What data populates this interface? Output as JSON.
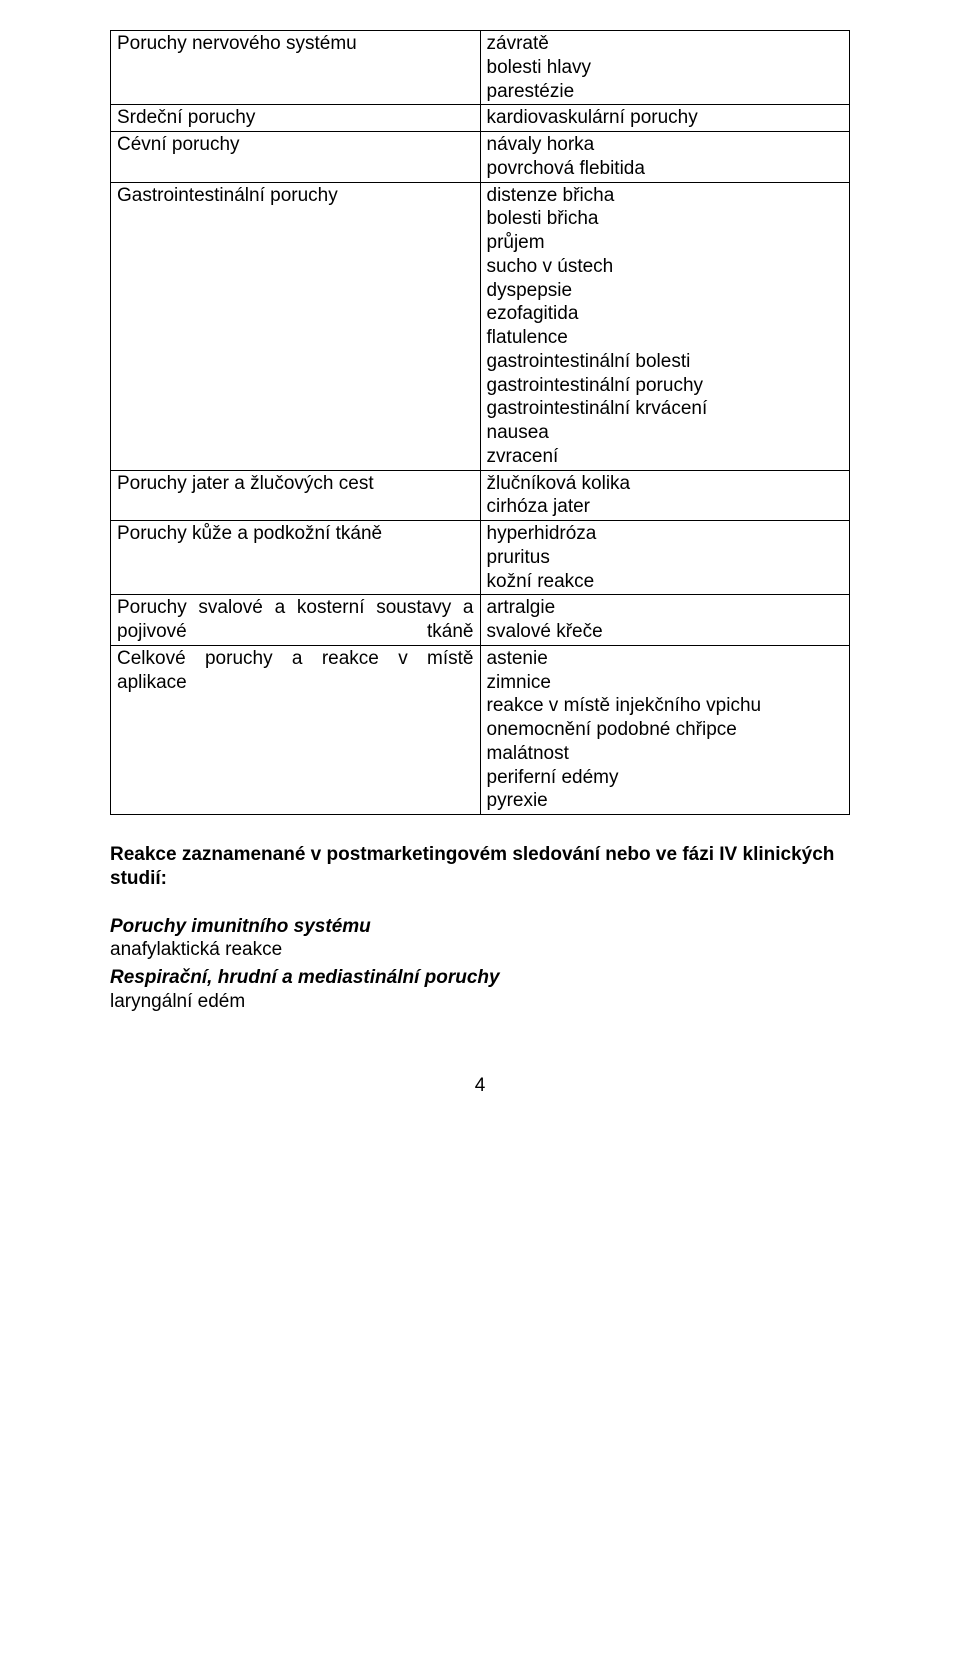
{
  "table": {
    "rows": [
      {
        "label": "Poruchy nervového systému",
        "items": [
          "závratě",
          "bolesti hlavy",
          "parestézie"
        ]
      },
      {
        "label": "Srdeční poruchy",
        "items": [
          "kardiovaskulární poruchy"
        ]
      },
      {
        "label": "Cévní poruchy",
        "items": [
          "návaly horka",
          "povrchová flebitida"
        ]
      },
      {
        "label": "Gastrointestinální poruchy",
        "items": [
          "distenze břicha",
          "bolesti břicha",
          "průjem",
          "sucho v ústech",
          "dyspepsie",
          "ezofagitida",
          "flatulence",
          "gastrointestinální bolesti",
          "gastrointestinální poruchy",
          "gastrointestinální krvácení",
          "nausea",
          "zvracení"
        ]
      },
      {
        "label": "Poruchy jater a žlučových cest",
        "items": [
          "žlučníková kolika",
          "cirhóza jater"
        ]
      },
      {
        "label": "Poruchy kůže a podkožní tkáně",
        "items": [
          "hyperhidróza",
          "pruritus",
          "kožní reakce"
        ]
      },
      {
        "label": "Poruchy svalové a kosterní soustavy a pojivové tkáně",
        "items": [
          "artralgie",
          "svalové křeče"
        ]
      },
      {
        "label": "Celkové poruchy a reakce v místě aplikace",
        "items": [
          "astenie",
          "zimnice",
          "reakce v místě injekčního vpichu",
          "onemocnění podobné chřipce",
          "malátnost",
          "periferní edémy",
          "pyrexie"
        ]
      }
    ]
  },
  "postmarketing": {
    "heading": "Reakce zaznamenané v postmarketingovém sledování nebo ve fázi IV klinických studií:",
    "sections": [
      {
        "title": "Poruchy imunitního systému",
        "lines": [
          "anafylaktická reakce"
        ]
      },
      {
        "title": "Respirační, hrudní a mediastinální poruchy",
        "lines": [
          "laryngální edém"
        ]
      }
    ]
  },
  "page_number": "4"
}
